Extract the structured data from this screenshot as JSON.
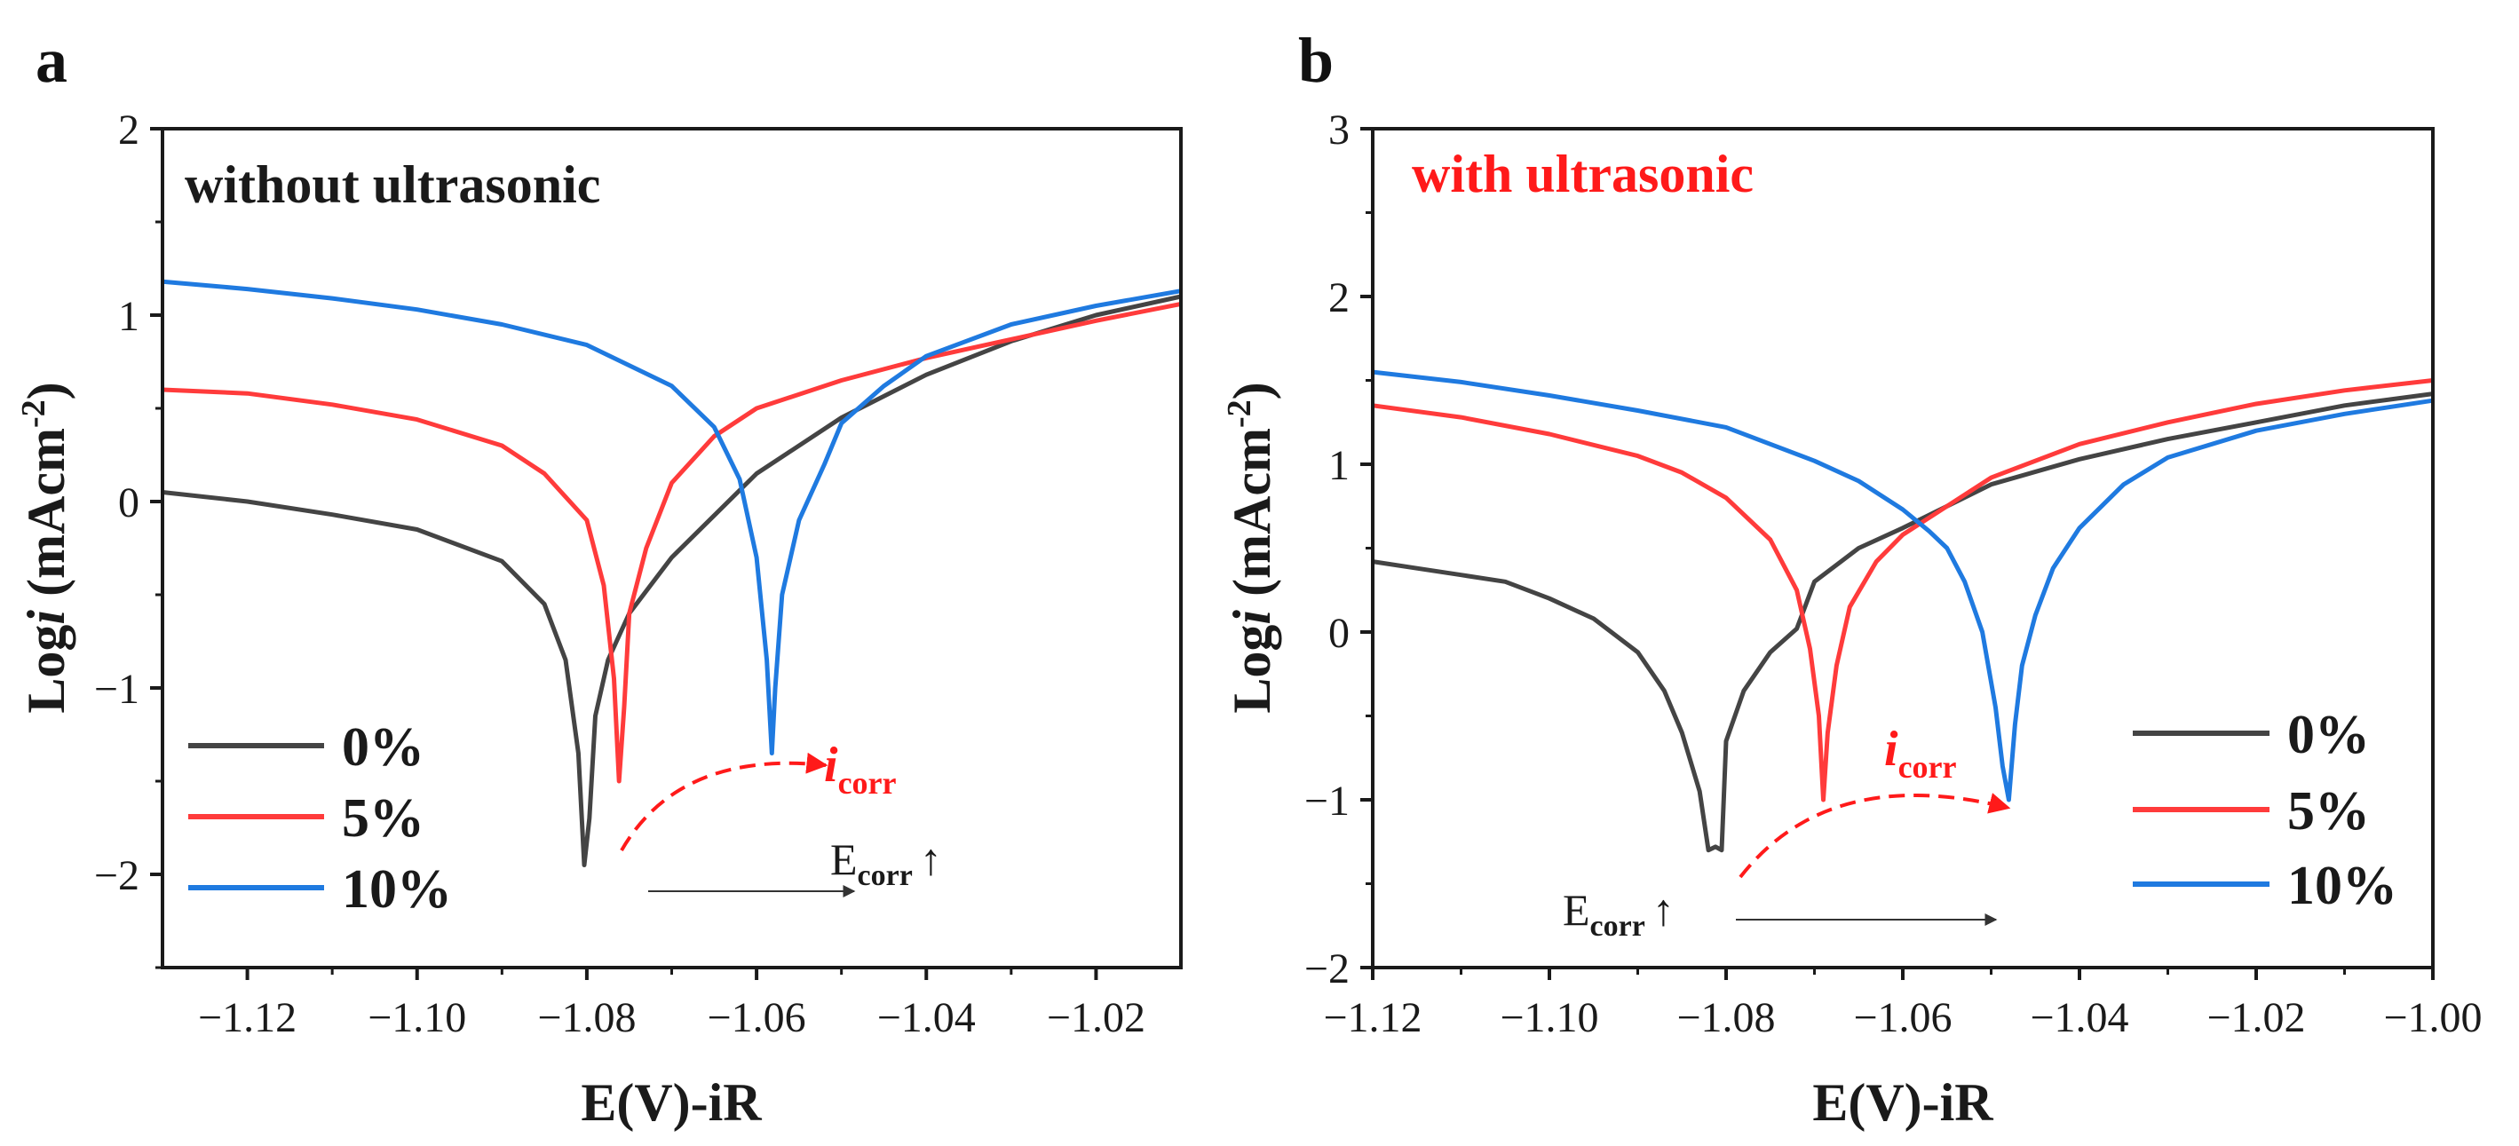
{
  "panels": [
    {
      "letter": "a",
      "condition": "without ultrasonic",
      "condition_color": "#1a1a1a"
    },
    {
      "letter": "b",
      "condition": "with ultrasonic",
      "condition_color": "#ff1a1a"
    }
  ],
  "colors": {
    "series_0": "#444444",
    "series_5": "#ff3b3b",
    "series_10": "#1f7ae0",
    "annotation": "#ff1a1a",
    "axis": "#1a1a1a"
  },
  "chart_data": [
    {
      "type": "line",
      "title": "without ultrasonic",
      "xlabel": "E(V)-iR",
      "ylabel_prefix": "Log",
      "ylabel_var": "i",
      "ylabel_unit": " (mAcm",
      "ylabel_exp": "-2",
      "ylabel_close": ")",
      "xlim": [
        -1.13,
        -1.01
      ],
      "ylim": [
        -2.5,
        2
      ],
      "xticks": [
        -1.12,
        -1.1,
        -1.08,
        -1.06,
        -1.04,
        -1.02
      ],
      "xtick_labels": [
        "−1.12",
        "−1.10",
        "−1.08",
        "−1.06",
        "−1.04",
        "−1.02"
      ],
      "yticks": [
        -2,
        -1,
        0,
        1,
        2
      ],
      "ytick_labels": [
        "−2",
        "−1",
        "0",
        "1",
        "2"
      ],
      "legend": [
        "0%",
        "5%",
        "10%"
      ],
      "legend_position": "bottom-left",
      "series": [
        {
          "name": "0%",
          "ecorr": -1.08,
          "min": -2.05,
          "x": [
            -1.13,
            -1.12,
            -1.11,
            -1.1,
            -1.09,
            -1.085,
            -1.0825,
            -1.081,
            -1.0803,
            -1.0797,
            -1.079,
            -1.0775,
            -1.075,
            -1.07,
            -1.06,
            -1.05,
            -1.04,
            -1.03,
            -1.02,
            -1.01
          ],
          "y": [
            0.05,
            0.0,
            -0.07,
            -0.15,
            -0.32,
            -0.55,
            -0.85,
            -1.35,
            -1.95,
            -1.7,
            -1.15,
            -0.85,
            -0.6,
            -0.3,
            0.15,
            0.45,
            0.68,
            0.86,
            1.0,
            1.1
          ]
        },
        {
          "name": "5%",
          "ecorr": -1.076,
          "min": -1.55,
          "x": [
            -1.13,
            -1.12,
            -1.11,
            -1.1,
            -1.09,
            -1.085,
            -1.08,
            -1.078,
            -1.0768,
            -1.0762,
            -1.0756,
            -1.075,
            -1.073,
            -1.07,
            -1.065,
            -1.06,
            -1.05,
            -1.04,
            -1.03,
            -1.02,
            -1.01
          ],
          "y": [
            0.6,
            0.58,
            0.52,
            0.44,
            0.3,
            0.15,
            -0.1,
            -0.45,
            -0.95,
            -1.5,
            -1.1,
            -0.6,
            -0.25,
            0.1,
            0.35,
            0.5,
            0.65,
            0.77,
            0.87,
            0.97,
            1.06
          ]
        },
        {
          "name": "10%",
          "ecorr": -1.058,
          "min": -1.38,
          "x": [
            -1.13,
            -1.12,
            -1.11,
            -1.1,
            -1.09,
            -1.08,
            -1.07,
            -1.065,
            -1.062,
            -1.06,
            -1.0588,
            -1.0582,
            -1.0578,
            -1.057,
            -1.055,
            -1.052,
            -1.05,
            -1.045,
            -1.04,
            -1.03,
            -1.02,
            -1.01
          ],
          "y": [
            1.18,
            1.14,
            1.09,
            1.03,
            0.95,
            0.84,
            0.62,
            0.4,
            0.12,
            -0.3,
            -0.85,
            -1.35,
            -1.0,
            -0.5,
            -0.1,
            0.2,
            0.42,
            0.62,
            0.78,
            0.95,
            1.05,
            1.13
          ]
        }
      ],
      "annotations": {
        "icorr_main": "i",
        "icorr_sub": "corr",
        "ecorr_main": "E",
        "ecorr_sub": "corr",
        "ecorr_arrow": "↑"
      }
    },
    {
      "type": "line",
      "title": "with ultrasonic",
      "xlabel": "E(V)-iR",
      "ylabel_prefix": "Log",
      "ylabel_var": "i",
      "ylabel_unit": " (mAcm",
      "ylabel_exp": "-2",
      "ylabel_close": ")",
      "xlim": [
        -1.12,
        -1.0
      ],
      "ylim": [
        -2,
        3
      ],
      "xticks": [
        -1.12,
        -1.1,
        -1.08,
        -1.06,
        -1.04,
        -1.02,
        -1.0
      ],
      "xtick_labels": [
        "−1.12",
        "−1.10",
        "−1.08",
        "−1.06",
        "−1.04",
        "−1.02",
        "−1.00"
      ],
      "yticks": [
        -2,
        -1,
        0,
        1,
        2,
        3
      ],
      "ytick_labels": [
        "−2",
        "−1",
        "0",
        "1",
        "2",
        "3"
      ],
      "legend": [
        "0%",
        "5%",
        "10%"
      ],
      "legend_position": "bottom-right",
      "series": [
        {
          "name": "0%",
          "ecorr": -1.081,
          "min": -1.3,
          "x": [
            -1.12,
            -1.115,
            -1.11,
            -1.105,
            -1.1,
            -1.095,
            -1.09,
            -1.087,
            -1.085,
            -1.083,
            -1.082,
            -1.0812,
            -1.0805,
            -1.08,
            -1.078,
            -1.075,
            -1.072,
            -1.07,
            -1.065,
            -1.06,
            -1.05,
            -1.04,
            -1.03,
            -1.02,
            -1.01,
            -1.0
          ],
          "y": [
            0.42,
            0.38,
            0.34,
            0.3,
            0.2,
            0.08,
            -0.12,
            -0.35,
            -0.6,
            -0.95,
            -1.3,
            -1.28,
            -1.3,
            -0.65,
            -0.35,
            -0.12,
            0.02,
            0.3,
            0.5,
            0.62,
            0.88,
            1.03,
            1.15,
            1.25,
            1.35,
            1.42
          ]
        },
        {
          "name": "5%",
          "ecorr": -1.069,
          "min": -1.0,
          "x": [
            -1.12,
            -1.11,
            -1.1,
            -1.09,
            -1.085,
            -1.08,
            -1.075,
            -1.072,
            -1.0705,
            -1.0695,
            -1.069,
            -1.0685,
            -1.0675,
            -1.066,
            -1.063,
            -1.06,
            -1.05,
            -1.04,
            -1.03,
            -1.02,
            -1.01,
            -1.0
          ],
          "y": [
            1.35,
            1.28,
            1.18,
            1.05,
            0.95,
            0.8,
            0.55,
            0.25,
            -0.1,
            -0.5,
            -1.0,
            -0.6,
            -0.2,
            0.15,
            0.42,
            0.58,
            0.92,
            1.12,
            1.25,
            1.36,
            1.44,
            1.5
          ]
        },
        {
          "name": "10%",
          "ecorr": -1.048,
          "min": -1.0,
          "x": [
            -1.12,
            -1.11,
            -1.1,
            -1.09,
            -1.08,
            -1.07,
            -1.065,
            -1.06,
            -1.057,
            -1.055,
            -1.053,
            -1.051,
            -1.0495,
            -1.0487,
            -1.048,
            -1.0473,
            -1.0465,
            -1.045,
            -1.043,
            -1.04,
            -1.035,
            -1.03,
            -1.02,
            -1.01,
            -1.0
          ],
          "y": [
            1.55,
            1.49,
            1.41,
            1.32,
            1.22,
            1.02,
            0.9,
            0.73,
            0.6,
            0.5,
            0.3,
            0.0,
            -0.45,
            -0.8,
            -1.0,
            -0.55,
            -0.2,
            0.1,
            0.38,
            0.62,
            0.88,
            1.04,
            1.2,
            1.3,
            1.38
          ]
        }
      ],
      "annotations": {
        "icorr_main": "i",
        "icorr_sub": "corr",
        "ecorr_main": "E",
        "ecorr_sub": "corr",
        "ecorr_arrow": "↑"
      }
    }
  ]
}
